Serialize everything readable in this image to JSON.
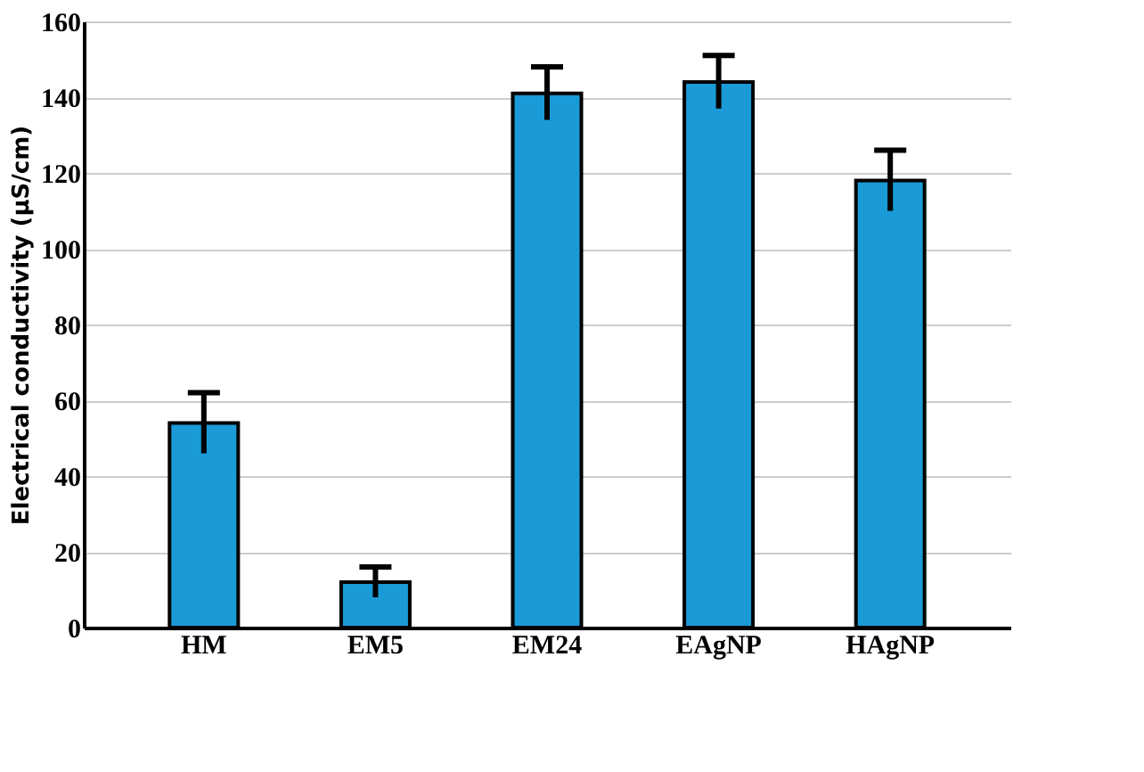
{
  "chart_data": {
    "type": "bar",
    "ylabel": "Electrical conductivity (µS/cm)",
    "categories": [
      "HM",
      "EM5",
      "EM24",
      "EAgNP",
      "HAgNP"
    ],
    "values": [
      54,
      12,
      141,
      144,
      118
    ],
    "errors": [
      8,
      4,
      7,
      7,
      8
    ],
    "color": "#1a9ad6",
    "ylim": [
      0,
      160
    ],
    "yticks": [
      0,
      20,
      40,
      60,
      80,
      100,
      120,
      140,
      160
    ],
    "grid": "y"
  }
}
